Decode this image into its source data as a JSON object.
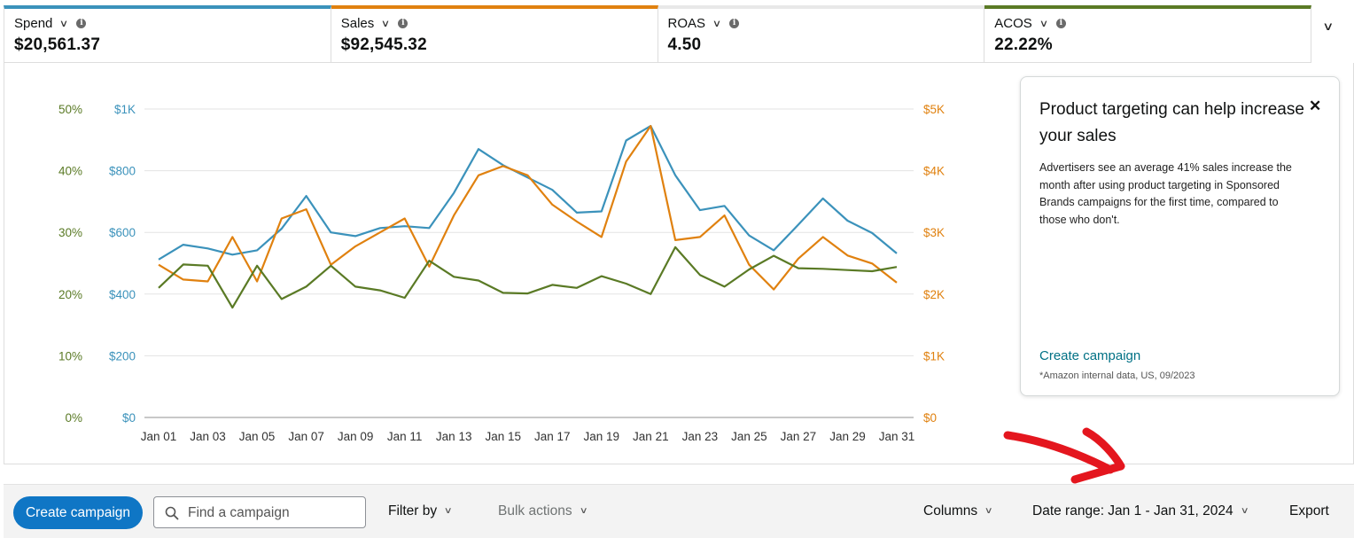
{
  "metrics": [
    {
      "label": "Spend",
      "value": "$20,561.37",
      "color": "#3b92bb"
    },
    {
      "label": "Sales",
      "value": "$92,545.32",
      "color": "#e0810f"
    },
    {
      "label": "ROAS",
      "value": "4.50",
      "color": "#e8e8e8"
    },
    {
      "label": "ACOS",
      "value": "22.22%",
      "color": "#5a7a25"
    }
  ],
  "metrics_expand_icon": "chevron-down-icon",
  "chart_data": {
    "type": "line",
    "x": [
      "Jan 01",
      "Jan 02",
      "Jan 03",
      "Jan 04",
      "Jan 05",
      "Jan 06",
      "Jan 07",
      "Jan 08",
      "Jan 09",
      "Jan 10",
      "Jan 11",
      "Jan 12",
      "Jan 13",
      "Jan 14",
      "Jan 15",
      "Jan 16",
      "Jan 17",
      "Jan 18",
      "Jan 19",
      "Jan 20",
      "Jan 21",
      "Jan 22",
      "Jan 23",
      "Jan 24",
      "Jan 25",
      "Jan 26",
      "Jan 27",
      "Jan 28",
      "Jan 29",
      "Jan 30",
      "Jan 31"
    ],
    "x_tick_labels": [
      "Jan 01",
      "Jan 03",
      "Jan 05",
      "Jan 07",
      "Jan 09",
      "Jan 11",
      "Jan 13",
      "Jan 15",
      "Jan 17",
      "Jan 19",
      "Jan 21",
      "Jan 23",
      "Jan 25",
      "Jan 27",
      "Jan 29",
      "Jan 31"
    ],
    "axes": {
      "acos": {
        "ticks": [
          "0%",
          "10%",
          "20%",
          "30%",
          "40%",
          "50%"
        ],
        "range": [
          0,
          50
        ],
        "color": "#5a7a25"
      },
      "spend": {
        "ticks": [
          "$0",
          "$200",
          "$400",
          "$600",
          "$800",
          "$1K"
        ],
        "range": [
          0,
          1000
        ],
        "color": "#3b92bb"
      },
      "sales": {
        "ticks": [
          "$0",
          "$1K",
          "$2K",
          "$3K",
          "$4K",
          "$5K"
        ],
        "range": [
          0,
          5000
        ],
        "color": "#e0810f"
      }
    },
    "grid": true,
    "series": [
      {
        "name": "Spend",
        "axis": "spend",
        "color": "#3b92bb",
        "values": [
          512,
          560,
          548,
          528,
          542,
          612,
          718,
          600,
          588,
          614,
          620,
          614,
          728,
          870,
          818,
          778,
          738,
          664,
          668,
          898,
          945,
          785,
          672,
          686,
          590,
          542,
          625,
          710,
          638,
          598,
          532
        ]
      },
      {
        "name": "Sales",
        "axis": "sales",
        "color": "#e0810f",
        "values": [
          2475,
          2235,
          2205,
          2925,
          2205,
          3225,
          3375,
          2475,
          2775,
          3000,
          3225,
          2445,
          3275,
          3925,
          4075,
          3925,
          3450,
          3175,
          2925,
          4150,
          4725,
          2875,
          2925,
          3275,
          2475,
          2075,
          2575,
          2925,
          2625,
          2495,
          2185
        ]
      },
      {
        "name": "ACOS",
        "axis": "acos",
        "color": "#5a7a25",
        "values": [
          21.0,
          24.8,
          24.6,
          17.8,
          24.6,
          19.2,
          21.2,
          24.6,
          21.2,
          20.6,
          19.4,
          25.4,
          22.8,
          22.2,
          20.2,
          20.1,
          21.5,
          21.0,
          22.9,
          21.7,
          20.0,
          27.6,
          23.1,
          21.2,
          24.0,
          26.2,
          24.2,
          24.1,
          23.9,
          23.7,
          24.4
        ]
      }
    ]
  },
  "promo": {
    "title": "Product targeting can help increase your sales",
    "body": "Advertisers see an average 41% sales increase the month after using product targeting in Sponsored Brands campaigns for the first time, compared to those who don't.",
    "link": "Create campaign",
    "footnote": "*Amazon internal data, US, 09/2023",
    "close_icon": "close-icon"
  },
  "annotation": {
    "color": "#e4161e",
    "icon": "red-arrow-annotation"
  },
  "toolbar": {
    "create_label": "Create campaign",
    "search_placeholder": "Find a campaign",
    "filter_label": "Filter by",
    "bulk_label": "Bulk actions",
    "columns_label": "Columns",
    "date_range_label": "Date range: Jan 1 - Jan 31, 2024",
    "export_label": "Export"
  }
}
